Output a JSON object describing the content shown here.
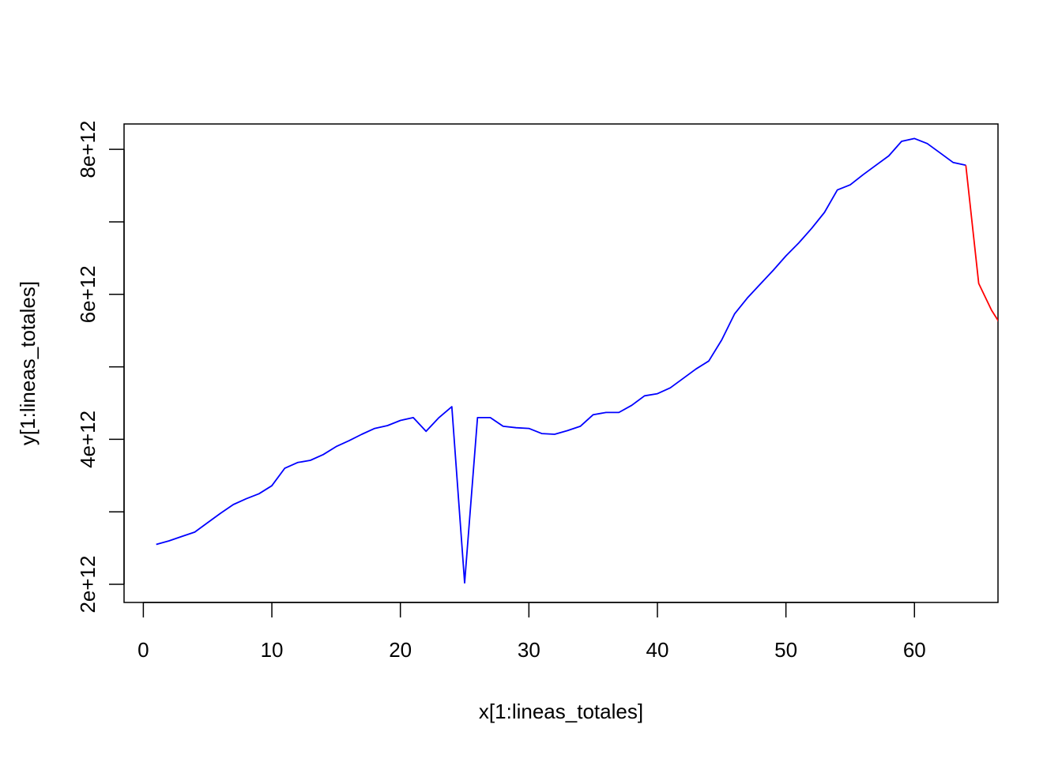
{
  "chart_data": {
    "type": "line",
    "title": "",
    "xlabel": "x[1:lineas_totales]",
    "ylabel": "y[1:lineas_totales]",
    "xlim": [
      -1.5,
      66.5
    ],
    "ylim": [
      1750000000000.0,
      8350000000000.0
    ],
    "x_ticks": [
      0,
      10,
      20,
      30,
      40,
      50,
      60
    ],
    "x_tick_labels": [
      "0",
      "10",
      "20",
      "30",
      "40",
      "50",
      "60"
    ],
    "y_ticks": [
      2000000000000.0,
      3000000000000.0,
      4000000000000.0,
      5000000000000.0,
      6000000000000.0,
      7000000000000.0,
      8000000000000.0
    ],
    "y_tick_labels": [
      "2e+12",
      "",
      "4e+12",
      "",
      "6e+12",
      "",
      "8e+12"
    ],
    "grid": false,
    "legend": "none",
    "series": [
      {
        "color": "#0000ff",
        "x": [
          1,
          2,
          3,
          4,
          5,
          6,
          7,
          8,
          9,
          10,
          11,
          12,
          13,
          14,
          15,
          16,
          17,
          18,
          19,
          20,
          21,
          22,
          23,
          24,
          25,
          26,
          27,
          28,
          29,
          30,
          31,
          32,
          33,
          34,
          35,
          36,
          37,
          38,
          39,
          40,
          41,
          42,
          43,
          44,
          45,
          46,
          47,
          48,
          49,
          50,
          51,
          52,
          53,
          54,
          55,
          56,
          57,
          58,
          59,
          60,
          61,
          62,
          63,
          64
        ],
        "y": [
          2550000000000.0,
          2600000000000.0,
          2660000000000.0,
          2720000000000.0,
          2850000000000.0,
          2980000000000.0,
          3100000000000.0,
          3180000000000.0,
          3250000000000.0,
          3360000000000.0,
          3600000000000.0,
          3680000000000.0,
          3710000000000.0,
          3790000000000.0,
          3900000000000.0,
          3980000000000.0,
          4070000000000.0,
          4150000000000.0,
          4190000000000.0,
          4260000000000.0,
          4300000000000.0,
          4110000000000.0,
          4300000000000.0,
          4450000000000.0,
          2020000000000.0,
          4300000000000.0,
          4300000000000.0,
          4180000000000.0,
          4160000000000.0,
          4150000000000.0,
          4080000000000.0,
          4070000000000.0,
          4120000000000.0,
          4180000000000.0,
          4340000000000.0,
          4370000000000.0,
          4370000000000.0,
          4470000000000.0,
          4600000000000.0,
          4630000000000.0,
          4710000000000.0,
          4840000000000.0,
          4970000000000.0,
          5080000000000.0,
          5370000000000.0,
          5730000000000.0,
          5950000000000.0,
          6140000000000.0,
          6330000000000.0,
          6530000000000.0,
          6710000000000.0,
          6910000000000.0,
          7130000000000.0,
          7440000000000.0,
          7510000000000.0,
          7650000000000.0,
          7780000000000.0,
          7910000000000.0,
          8110000000000.0,
          8150000000000.0,
          8080000000000.0,
          7950000000000.0,
          7820000000000.0,
          7780000000000.0
        ]
      },
      {
        "color": "#ff0000",
        "x": [
          64,
          65,
          66,
          67
        ],
        "y": [
          7780000000000.0,
          6150000000000.0,
          5780000000000.0,
          5500000000000.0
        ]
      }
    ]
  }
}
